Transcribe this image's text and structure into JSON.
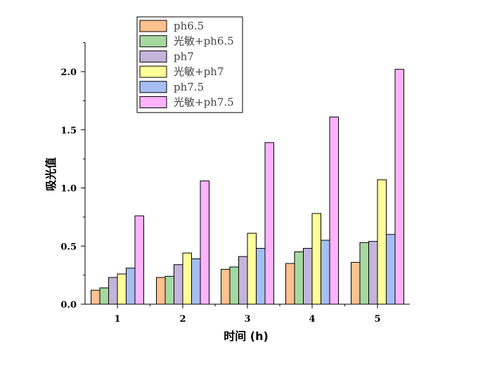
{
  "chart_data": {
    "type": "bar",
    "xlabel": "时间 (h)",
    "ylabel": "吸光值",
    "categories": [
      "1",
      "2",
      "3",
      "4",
      "5"
    ],
    "ylim": [
      0,
      2.25
    ],
    "yticks": [
      "0.0",
      "0.5",
      "1.0",
      "1.5",
      "2.0"
    ],
    "ytick_values": [
      0,
      0.5,
      1.0,
      1.5,
      2.0
    ],
    "grid": false,
    "legend_position": "top-left",
    "series": [
      {
        "name": "ph6.5",
        "color": "#FFC08F",
        "values": [
          0.12,
          0.23,
          0.3,
          0.35,
          0.36
        ]
      },
      {
        "name": "光敏+ph6.5",
        "color": "#A6D9A0",
        "values": [
          0.14,
          0.24,
          0.32,
          0.45,
          0.53
        ]
      },
      {
        "name": "ph7",
        "color": "#C3B4D9",
        "values": [
          0.23,
          0.34,
          0.41,
          0.48,
          0.54
        ]
      },
      {
        "name": "光敏+ph7",
        "color": "#FFFF99",
        "values": [
          0.26,
          0.44,
          0.61,
          0.78,
          1.07
        ]
      },
      {
        "name": "ph7.5",
        "color": "#A6BEF2",
        "values": [
          0.31,
          0.39,
          0.48,
          0.55,
          0.6
        ]
      },
      {
        "name": "光敏+ph7.5",
        "color": "#FFB3FF",
        "values": [
          0.76,
          1.06,
          1.39,
          1.61,
          2.02
        ]
      }
    ]
  }
}
